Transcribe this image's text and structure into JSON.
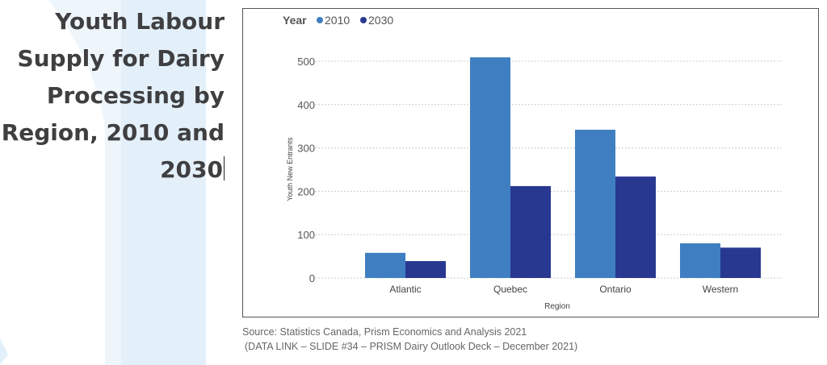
{
  "title": "Youth Labour Supply for Dairy Processing by Region, 2010 and 2030",
  "source_line1": "Source: Statistics Canada, Prism Economics and Analysis 2021",
  "source_line2": "(DATA LINK – SLIDE #34 – PRISM Dairy Outlook Deck – December 2021)",
  "chart_data": {
    "type": "bar",
    "title": "",
    "xlabel": "Region",
    "ylabel": "Youth New Entrants",
    "legend_title": "Year",
    "legend_position": "top-left",
    "categories": [
      "Atlantic",
      "Quebec",
      "Ontario",
      "Western"
    ],
    "series": [
      {
        "name": "2010",
        "color": "#3f7fc1",
        "values": [
          58,
          509,
          342,
          80
        ]
      },
      {
        "name": "2030",
        "color": "#283891",
        "values": [
          39,
          212,
          234,
          70
        ]
      }
    ],
    "ylim": [
      0,
      500
    ],
    "yticks": [
      "0",
      "100",
      "200",
      "300",
      "400",
      "500"
    ],
    "grid": true
  }
}
